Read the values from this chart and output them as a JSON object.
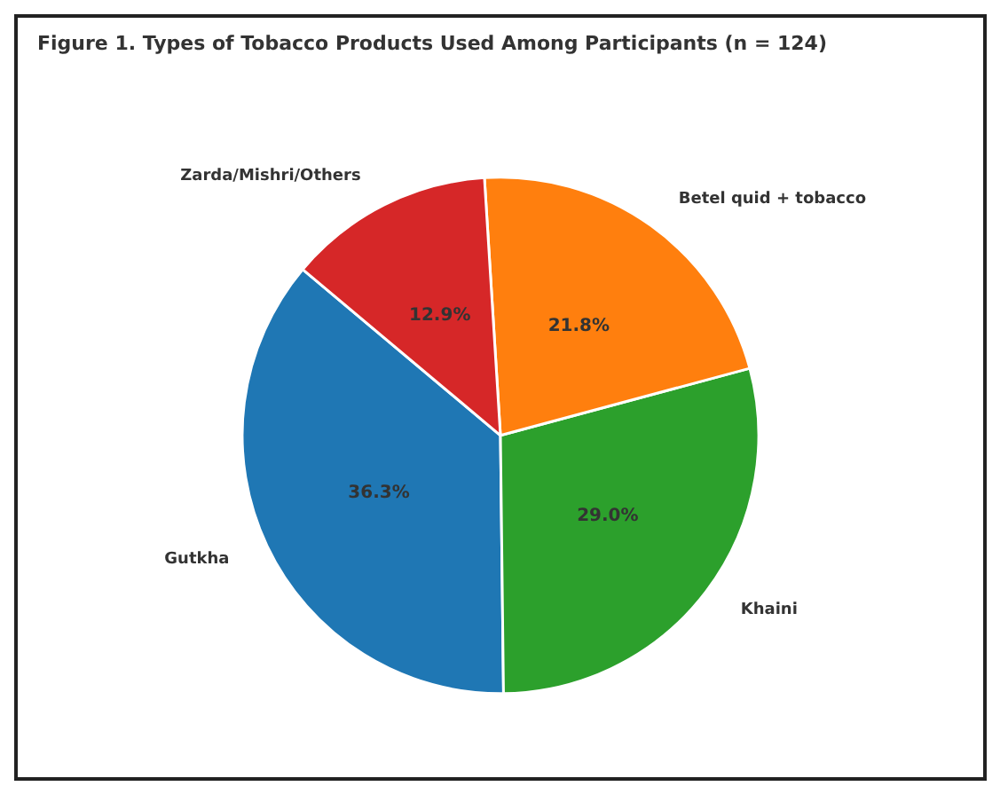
{
  "chart_data": {
    "type": "pie",
    "title": "Figure 1. Types of Tobacco Products Used Among Participants (n = 124)",
    "categories": [
      "Gutkha",
      "Khaini",
      "Betel quid + tobacco",
      "Zarda/Mishri/Others"
    ],
    "values": [
      36.3,
      29.0,
      21.8,
      12.9
    ],
    "colors": [
      "#1f77b4",
      "#2ca02c",
      "#ff7f0e",
      "#d62728"
    ],
    "value_labels": [
      "36.3%",
      "29.0%",
      "21.8%",
      "12.9%"
    ],
    "legend": false
  }
}
